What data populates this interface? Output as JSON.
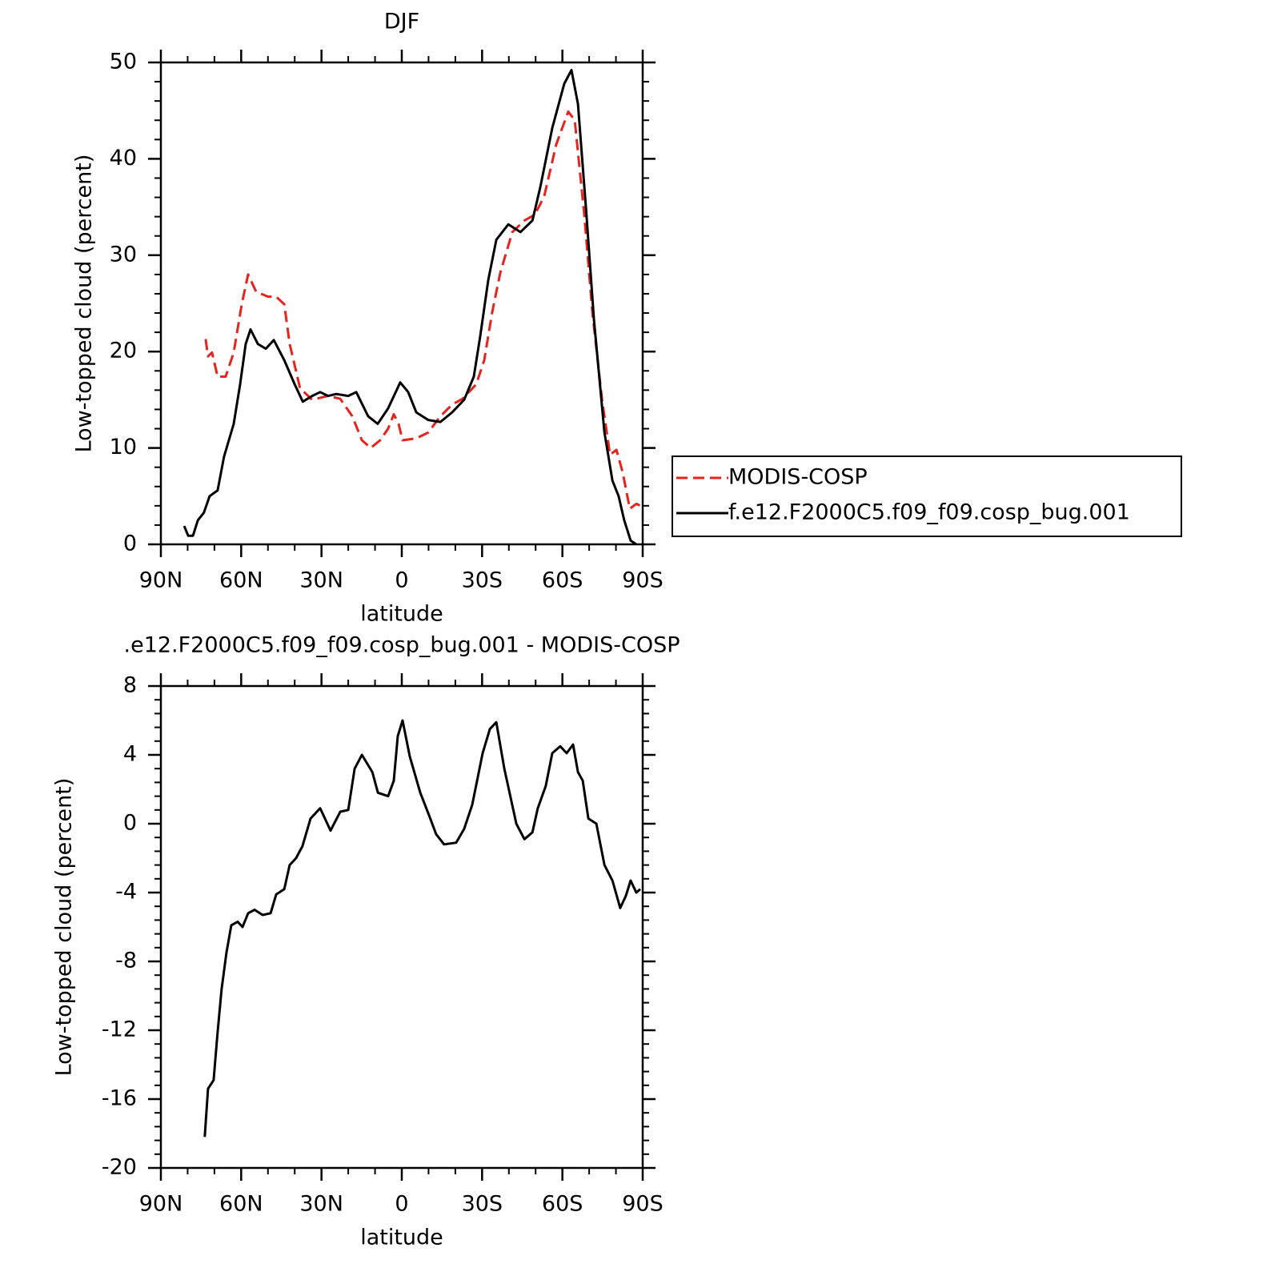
{
  "chart_data": [
    {
      "type": "line",
      "title": "DJF",
      "x_label": "latitude",
      "y_label": "Low-topped cloud (percent)",
      "xlim": [
        90,
        -90
      ],
      "ylim": [
        0,
        50
      ],
      "xticks": [
        {
          "value": 90,
          "label": "90N"
        },
        {
          "value": 60,
          "label": "60N"
        },
        {
          "value": 30,
          "label": "30N"
        },
        0,
        {
          "value": -30,
          "label": "30S"
        },
        {
          "value": -60,
          "label": "60S"
        },
        {
          "value": -90,
          "label": "90S"
        }
      ],
      "yticks": [
        0,
        10,
        20,
        30,
        40,
        50
      ],
      "legend": "right",
      "series": [
        {
          "name": "MODIS-COSP",
          "color": "#e8221c",
          "style": "dashed",
          "x": [
            73.3,
            72.4,
            70.9,
            68.8,
            65.8,
            62.8,
            59.8,
            57.4,
            54.4,
            49.9,
            46.9,
            43.9,
            41.9,
            38,
            33.5,
            27.5,
            23,
            18.5,
            14.9,
            11.6,
            8.1,
            5.1,
            3,
            1.2,
            -0.3,
            -5.4,
            -9.9,
            -14.4,
            -18.8,
            -22.7,
            -27.8,
            -30.8,
            -33.8,
            -36.8,
            -41.3,
            -45.8,
            -49.7,
            -53.2,
            -57.7,
            -62.2,
            -64.6,
            -68.2,
            -71.2,
            -74.8,
            -77.8,
            -80.2,
            -82.5,
            -85.2,
            -87.6,
            -89.1
          ],
          "values": [
            21.3,
            19.5,
            19.9,
            17.4,
            17.4,
            19.9,
            24.9,
            28,
            26.2,
            25.7,
            25.7,
            24.9,
            20.8,
            16.2,
            15,
            15.4,
            15.1,
            13.3,
            10.8,
            10,
            10.8,
            12,
            13.5,
            12.5,
            10.8,
            11,
            11.6,
            13.3,
            14.5,
            15.1,
            16.6,
            19.1,
            24.1,
            28.2,
            32.4,
            33.6,
            34.2,
            36.1,
            41.5,
            44.9,
            44,
            34.1,
            24.1,
            15,
            9.3,
            9.8,
            7.5,
            3.7,
            4.2,
            4
          ]
        },
        {
          "name": "f.e12.F2000C5.f09_f09.cosp_bug.001",
          "color": "#000000",
          "style": "solid",
          "x": [
            81.3,
            79.8,
            78,
            76.2,
            73.9,
            71.8,
            68.8,
            66.4,
            62.8,
            60.4,
            58.3,
            56.5,
            53.8,
            50.8,
            47.8,
            43.9,
            40,
            37,
            33.5,
            30.5,
            27.5,
            24.5,
            20,
            17,
            12.6,
            9,
            5.1,
            0.6,
            -2.4,
            -5.4,
            -9.9,
            -14.4,
            -18.8,
            -23.3,
            -26.9,
            -29.3,
            -32.3,
            -35.3,
            -39.8,
            -44.3,
            -48.8,
            -51.7,
            -56.2,
            -60.7,
            -63.4,
            -65.8,
            -68.8,
            -71.8,
            -75.7,
            -78.7,
            -81,
            -83.1,
            -85.5,
            -87.6
          ],
          "values": [
            1.9,
            0.9,
            0.9,
            2.5,
            3.3,
            5,
            5.6,
            9.1,
            12.5,
            16.6,
            20.8,
            22.3,
            20.8,
            20.3,
            21.2,
            19.1,
            16.6,
            14.8,
            15.4,
            15.8,
            15.4,
            15.6,
            15.4,
            15.8,
            13.3,
            12.5,
            14.1,
            16.8,
            15.8,
            13.7,
            12.9,
            12.7,
            13.7,
            15,
            17.4,
            21.6,
            27.4,
            31.6,
            33.2,
            32.4,
            33.6,
            37,
            43.2,
            47.8,
            49.2,
            45.7,
            34.9,
            23.3,
            11.6,
            6.6,
            5,
            2.5,
            0.4,
            0
          ]
        }
      ]
    },
    {
      "type": "line",
      "title": ".e12.F2000C5.f09_f09.cosp_bug.001 - MODIS-COSP",
      "x_label": "latitude",
      "y_label": "Low-topped cloud (percent)",
      "xlim": [
        90,
        -90
      ],
      "ylim": [
        -20,
        8
      ],
      "xticks": [
        {
          "value": 90,
          "label": "90N"
        },
        {
          "value": 60,
          "label": "60N"
        },
        {
          "value": 30,
          "label": "30N"
        },
        0,
        {
          "value": -30,
          "label": "30S"
        },
        {
          "value": -60,
          "label": "60S"
        },
        {
          "value": -90,
          "label": "90S"
        }
      ],
      "yticks": [
        -20,
        -16,
        -12,
        -8,
        -4,
        0,
        4,
        8
      ],
      "series": [
        {
          "color": "#000000",
          "style": "solid",
          "x": [
            73.6,
            72.4,
            70.3,
            68.8,
            67.3,
            65.5,
            63.7,
            61.3,
            59.5,
            57.4,
            55,
            52,
            49,
            46.9,
            43.9,
            41.9,
            39.5,
            37.1,
            34.1,
            30.5,
            26.6,
            23,
            20,
            17.6,
            14.9,
            11,
            8.9,
            5.1,
            3,
            1.5,
            -0.3,
            -3,
            -6.9,
            -10.4,
            -12.8,
            -15.8,
            -20.3,
            -23.3,
            -26.3,
            -30.2,
            -32.9,
            -35.3,
            -38.3,
            -42.8,
            -45.8,
            -48.8,
            -50.8,
            -53.8,
            -56.2,
            -59.2,
            -61.6,
            -64,
            -65.8,
            -67.6,
            -69.7,
            -72.7,
            -75.7,
            -78.7,
            -81.6,
            -83.7,
            -85.5,
            -87.6,
            -89.1
          ],
          "values": [
            -18.2,
            -15.4,
            -14.9,
            -12.1,
            -9.6,
            -7.5,
            -5.9,
            -5.7,
            -6,
            -5.2,
            -5,
            -5.3,
            -5.2,
            -4.1,
            -3.8,
            -2.4,
            -2,
            -1.3,
            0.3,
            0.9,
            -0.4,
            0.7,
            0.8,
            3.2,
            4,
            3,
            1.8,
            1.6,
            2.5,
            5.1,
            6,
            3.9,
            1.8,
            0.4,
            -0.6,
            -1.2,
            -1.1,
            -0.3,
            1.1,
            4.1,
            5.5,
            5.9,
            3.2,
            0,
            -0.9,
            -0.5,
            0.9,
            2.2,
            4.1,
            4.5,
            4.1,
            4.6,
            3,
            2.5,
            0.3,
            0,
            -2.4,
            -3.3,
            -4.9,
            -4.2,
            -3.3,
            -4,
            -3.8
          ]
        }
      ]
    }
  ]
}
